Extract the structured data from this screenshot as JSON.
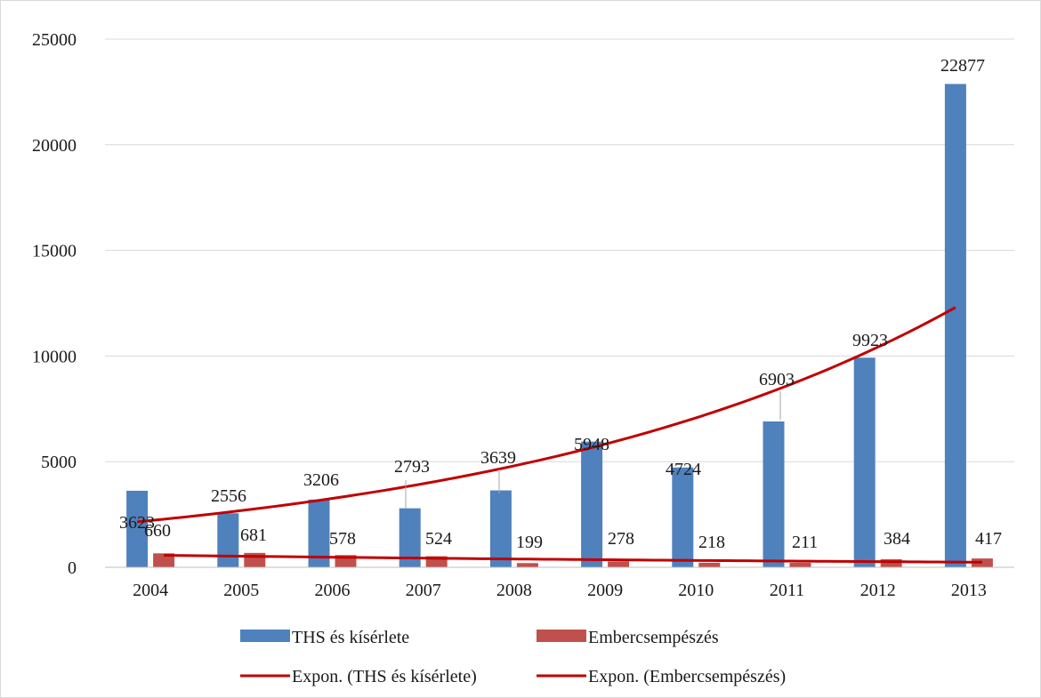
{
  "chart_data": {
    "type": "bar",
    "categories": [
      "2004",
      "2005",
      "2006",
      "2007",
      "2008",
      "2009",
      "2010",
      "2011",
      "2012",
      "2013"
    ],
    "series": [
      {
        "name": "THS és kísérlete",
        "color": "#4f81bd",
        "values": [
          3623,
          2556,
          3206,
          2793,
          3639,
          5948,
          4724,
          6903,
          9923,
          22877
        ]
      },
      {
        "name": "Embercsempészés",
        "color": "#c0504d",
        "values": [
          660,
          681,
          578,
          524,
          199,
          278,
          218,
          211,
          384,
          417
        ]
      }
    ],
    "trendlines": [
      {
        "name": "Expon. (THS és kísérlete)",
        "series": "THS és kísérlete",
        "kind": "exponential",
        "color": "#c00000",
        "start_value": 2150,
        "end_value": 12300
      },
      {
        "name": "Expon. (Embercsempészés)",
        "series": "Embercsempészés",
        "kind": "exponential",
        "color": "#c00000",
        "start_value": 570,
        "end_value": 240
      }
    ],
    "title": "",
    "xlabel": "",
    "ylabel": "",
    "ylim": [
      0,
      25000
    ],
    "yticks": [
      0,
      5000,
      10000,
      15000,
      20000,
      25000
    ],
    "grid": true,
    "legend_position": "bottom"
  }
}
